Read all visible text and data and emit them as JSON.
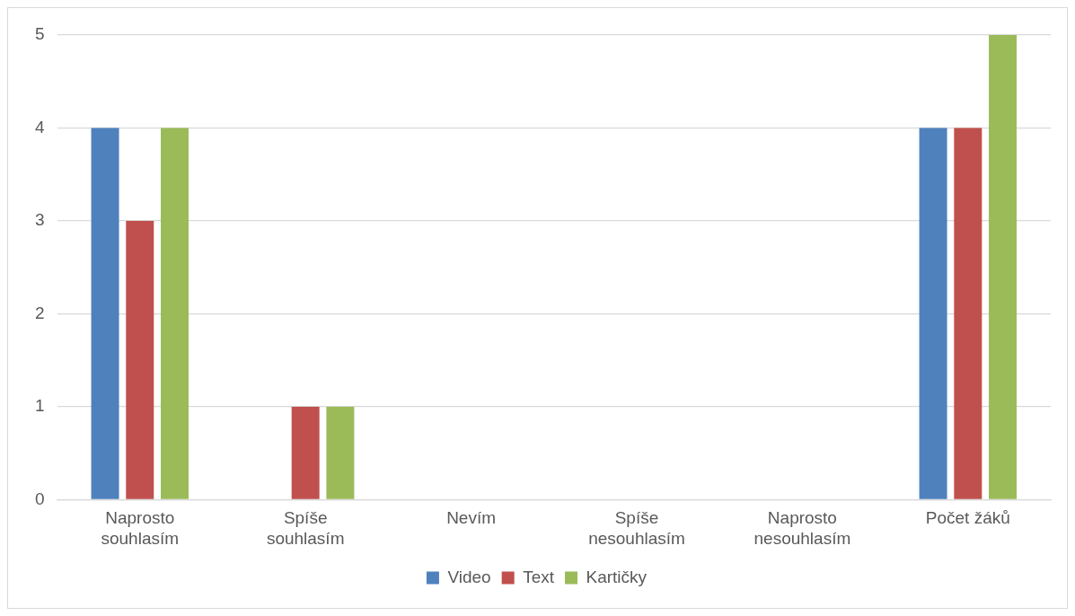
{
  "chart_data": {
    "type": "bar",
    "categories": [
      "Naprosto souhlasím",
      "Spíše souhlasím",
      "Nevím",
      "Spíše nesouhlasím",
      "Naprosto nesouhlasím",
      "Počet žáků"
    ],
    "series": [
      {
        "name": "Video",
        "color": "#4f81bd",
        "values": [
          4,
          0,
          0,
          0,
          0,
          4
        ]
      },
      {
        "name": "Text",
        "color": "#c0504d",
        "values": [
          3,
          1,
          0,
          0,
          0,
          4
        ]
      },
      {
        "name": "Kartičky",
        "color": "#9bbb59",
        "values": [
          4,
          1,
          0,
          0,
          0,
          5
        ]
      }
    ],
    "ylim": [
      0,
      5
    ],
    "yticks": [
      0,
      1,
      2,
      3,
      4,
      5
    ],
    "grid": "y",
    "legend": "bottom"
  }
}
